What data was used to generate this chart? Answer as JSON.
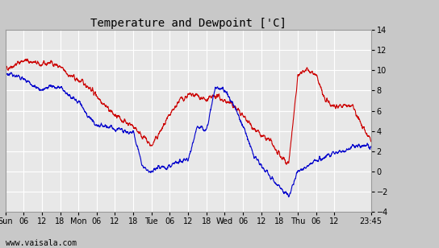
{
  "title": "Temperature and Dewpoint ['C]",
  "ylim": [
    -4,
    14
  ],
  "yticks": [
    -4,
    -2,
    0,
    2,
    4,
    6,
    8,
    10,
    12,
    14
  ],
  "bg_color": "#c8c8c8",
  "plot_bg_color": "#e8e8e8",
  "grid_color": "#ffffff",
  "temp_color": "#cc0000",
  "dew_color": "#0000cc",
  "watermark": "www.vaisala.com",
  "xtick_labels": [
    "Sun",
    "06",
    "12",
    "18",
    "Mon",
    "06",
    "12",
    "18",
    "Tue",
    "06",
    "12",
    "18",
    "Wed",
    "06",
    "12",
    "18",
    "Thu",
    "06",
    "12",
    "23:45"
  ],
  "xtick_positions": [
    0,
    6,
    12,
    18,
    24,
    30,
    36,
    42,
    48,
    54,
    60,
    66,
    72,
    78,
    84,
    90,
    96,
    102,
    108,
    120
  ],
  "xlim": [
    0,
    120
  ],
  "line_width": 0.8,
  "title_fontsize": 10,
  "tick_fontsize": 7,
  "watermark_fontsize": 7,
  "temp_keypoints_x": [
    0,
    3,
    6,
    9,
    12,
    15,
    18,
    21,
    24,
    27,
    30,
    33,
    36,
    39,
    42,
    45,
    48,
    51,
    54,
    57,
    60,
    63,
    66,
    69,
    72,
    75,
    78,
    81,
    84,
    87,
    90,
    93,
    96,
    99,
    102,
    105,
    108,
    111,
    114,
    117,
    120
  ],
  "temp_keypoints_y": [
    10.2,
    10.5,
    11.0,
    10.8,
    10.5,
    10.8,
    10.3,
    9.5,
    9.0,
    8.5,
    7.5,
    6.5,
    5.5,
    5.0,
    4.5,
    3.5,
    2.5,
    4.0,
    5.5,
    7.0,
    7.5,
    7.5,
    7.0,
    7.5,
    7.0,
    6.5,
    5.5,
    4.5,
    3.5,
    3.0,
    1.5,
    0.8,
    9.5,
    10.0,
    9.5,
    7.0,
    6.5,
    6.5,
    6.5,
    4.5,
    3.0
  ],
  "dew_keypoints_x": [
    0,
    3,
    6,
    9,
    12,
    15,
    18,
    21,
    24,
    27,
    30,
    33,
    36,
    39,
    42,
    45,
    48,
    51,
    54,
    57,
    60,
    63,
    66,
    69,
    72,
    75,
    78,
    81,
    84,
    87,
    90,
    93,
    96,
    99,
    102,
    105,
    108,
    111,
    114,
    117,
    120
  ],
  "dew_keypoints_y": [
    9.8,
    9.5,
    9.2,
    8.5,
    8.0,
    8.5,
    8.2,
    7.5,
    7.0,
    5.5,
    4.5,
    4.5,
    4.2,
    4.0,
    3.8,
    0.5,
    0.0,
    0.5,
    0.5,
    1.0,
    1.2,
    4.5,
    4.0,
    8.5,
    8.0,
    6.5,
    4.5,
    2.0,
    0.5,
    -0.5,
    -1.5,
    -2.5,
    0.0,
    0.5,
    1.0,
    1.5,
    2.0,
    2.0,
    2.5,
    2.5,
    2.5
  ]
}
